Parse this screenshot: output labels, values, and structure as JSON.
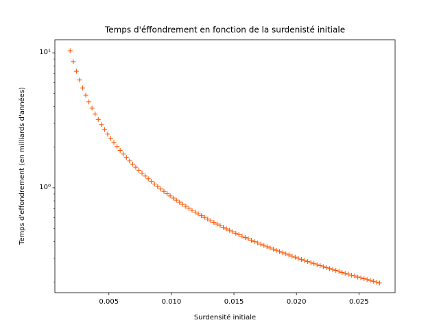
{
  "chart_data": {
    "type": "scatter",
    "title": "Temps d'éffondrement en fonction de la surdenisté initiale",
    "x_label": "Surdensité initiale",
    "y_label": "Temps d'effondrement (en milliards d'années)",
    "y_scale": "log",
    "marker": "+",
    "color": "#ff5500",
    "xlim": [
      0.00068,
      0.02789
    ],
    "ylim": [
      0.167,
      12.5
    ],
    "xticks": [
      0.005,
      {
        "value": 0.01,
        "label": "0.010"
      },
      0.015,
      {
        "value": 0.02,
        "label": "0.020"
      },
      0.025
    ],
    "yticks": [
      {
        "value": 1,
        "label": "10⁰"
      },
      {
        "value": 10,
        "label": "10¹"
      }
    ],
    "yminorticks": [
      0.2,
      0.3,
      0.4,
      0.5,
      0.6,
      0.7,
      0.8,
      0.9,
      2,
      3,
      4,
      5,
      6,
      7,
      8,
      9
    ],
    "x": [
      0.0019,
      0.00215,
      0.0024,
      0.00265,
      0.0029,
      0.00315,
      0.0034,
      0.00365,
      0.0039,
      0.00415,
      0.0044,
      0.00465,
      0.0049,
      0.00515,
      0.0054,
      0.00565,
      0.0059,
      0.00615,
      0.0064,
      0.00665,
      0.0069,
      0.00715,
      0.0074,
      0.00765,
      0.0079,
      0.00815,
      0.0084,
      0.00865,
      0.0089,
      0.00915,
      0.0094,
      0.00965,
      0.0099,
      0.01015,
      0.0104,
      0.01065,
      0.0109,
      0.01115,
      0.0114,
      0.01165,
      0.0119,
      0.01215,
      0.0124,
      0.01265,
      0.0129,
      0.01315,
      0.0134,
      0.01365,
      0.0139,
      0.01415,
      0.0144,
      0.01465,
      0.0149,
      0.01515,
      0.0154,
      0.01565,
      0.0159,
      0.01615,
      0.0164,
      0.01665,
      0.0169,
      0.01715,
      0.0174,
      0.01765,
      0.0179,
      0.01815,
      0.0184,
      0.01865,
      0.0189,
      0.01915,
      0.0194,
      0.01965,
      0.0199,
      0.02015,
      0.0204,
      0.02065,
      0.0209,
      0.02115,
      0.0214,
      0.02165,
      0.0219,
      0.02215,
      0.0224,
      0.02265,
      0.0229,
      0.02315,
      0.0234,
      0.02365,
      0.0239,
      0.02415,
      0.0244,
      0.02465,
      0.0249,
      0.02515,
      0.0254,
      0.02565,
      0.0259,
      0.02615,
      0.0264,
      0.02665
    ],
    "values": [
      10.36,
      8.606,
      7.297,
      6.289,
      5.494,
      4.853,
      4.328,
      3.891,
      3.523,
      3.209,
      2.94,
      2.706,
      2.501,
      2.321,
      2.162,
      2.02,
      1.893,
      1.779,
      1.676,
      1.582,
      1.497,
      1.419,
      1.348,
      1.282,
      1.222,
      1.166,
      1.114,
      1.066,
      1.022,
      0.98,
      0.941,
      0.905,
      0.871,
      0.839,
      0.809,
      0.781,
      0.754,
      0.729,
      0.705,
      0.682,
      0.661,
      0.641,
      0.621,
      0.603,
      0.586,
      0.569,
      0.553,
      0.538,
      0.524,
      0.51,
      0.496,
      0.484,
      0.472,
      0.46,
      0.449,
      0.438,
      0.428,
      0.418,
      0.408,
      0.399,
      0.39,
      0.382,
      0.374,
      0.366,
      0.358,
      0.351,
      0.344,
      0.337,
      0.33,
      0.324,
      0.318,
      0.311,
      0.306,
      0.3,
      0.294,
      0.289,
      0.284,
      0.279,
      0.274,
      0.269,
      0.265,
      0.26,
      0.256,
      0.252,
      0.248,
      0.244,
      0.24,
      0.236,
      0.232,
      0.229,
      0.225,
      0.222,
      0.218,
      0.215,
      0.212,
      0.209,
      0.206,
      0.203,
      0.2,
      0.197
    ]
  }
}
